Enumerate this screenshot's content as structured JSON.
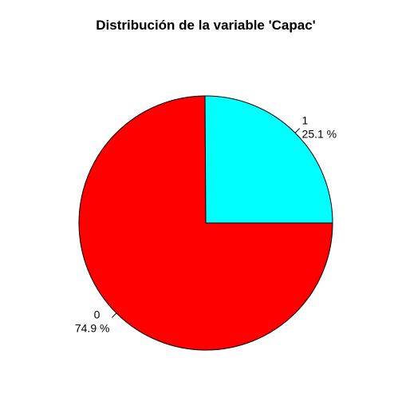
{
  "chart_data": {
    "type": "pie",
    "title": "Distribución de la variable 'Capac'",
    "slices": [
      {
        "category": "0",
        "value": 74.9,
        "label": "74.9 %",
        "color": "#FF0000"
      },
      {
        "category": "1",
        "value": 25.1,
        "label": "25.1 %",
        "color": "#00FFFF"
      }
    ],
    "start_angle_deg": 0,
    "direction": "clockwise"
  }
}
